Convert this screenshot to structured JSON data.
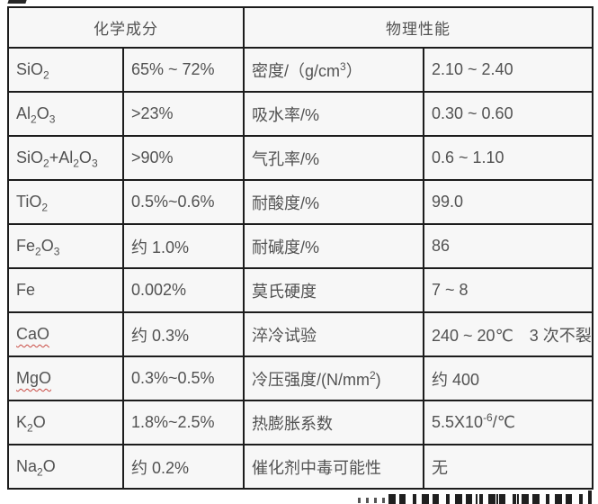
{
  "colors": {
    "border_color": "#1c1c1c",
    "text_color": "#525252",
    "cell_background": "#f7f7f7",
    "misspell_underline": "#c94a43"
  },
  "table": {
    "header_chemical": "化学成分",
    "header_physical": "物理性能",
    "rows": [
      {
        "chem": "SiO~2~",
        "chem_val": "65% ~ 72%",
        "phys": "密度/（g/cm^3^）",
        "phys_val": "2.10 ~ 2.40",
        "chem_misspell": false
      },
      {
        "chem": "Al~2~O~3~",
        "chem_val": ">23%",
        "phys": "吸水率/%",
        "phys_val": "0.30 ~ 0.60",
        "chem_misspell": false
      },
      {
        "chem": "SiO~2~+Al~2~O~3~",
        "chem_val": ">90%",
        "phys": "气孔率/%",
        "phys_val": "0.6 ~ 1.10",
        "chem_misspell": false
      },
      {
        "chem": "TiO~2~",
        "chem_val": "0.5%~0.6%",
        "phys": "耐酸度/%",
        "phys_val": "99.0",
        "chem_misspell": false
      },
      {
        "chem": "Fe~2~O~3~",
        "chem_val": "约 1.0%",
        "phys": "耐碱度/%",
        "phys_val": "86",
        "chem_misspell": false
      },
      {
        "chem": "Fe",
        "chem_val": "0.002%",
        "phys": "莫氏硬度",
        "phys_val": "7 ~ 8",
        "chem_misspell": false
      },
      {
        "chem": "CaO",
        "chem_val": "约 0.3%",
        "phys": "淬冷试验",
        "phys_val": "240 ~ 20℃　3 次不裂",
        "chem_misspell": true
      },
      {
        "chem": "MgO",
        "chem_val": "0.3%~0.5%",
        "phys": "冷压强度/(N/mm^2^)",
        "phys_val": "约 400",
        "chem_misspell": true
      },
      {
        "chem": "K~2~O",
        "chem_val": "1.8%~2.5%",
        "phys": "热膨胀系数",
        "phys_val": "5.5X10^-6^/℃",
        "chem_misspell": false
      },
      {
        "chem": "Na~2~O",
        "chem_val": "约 0.2%",
        "phys": "催化剂中毒可能性",
        "phys_val": "无",
        "chem_misspell": false
      }
    ]
  }
}
